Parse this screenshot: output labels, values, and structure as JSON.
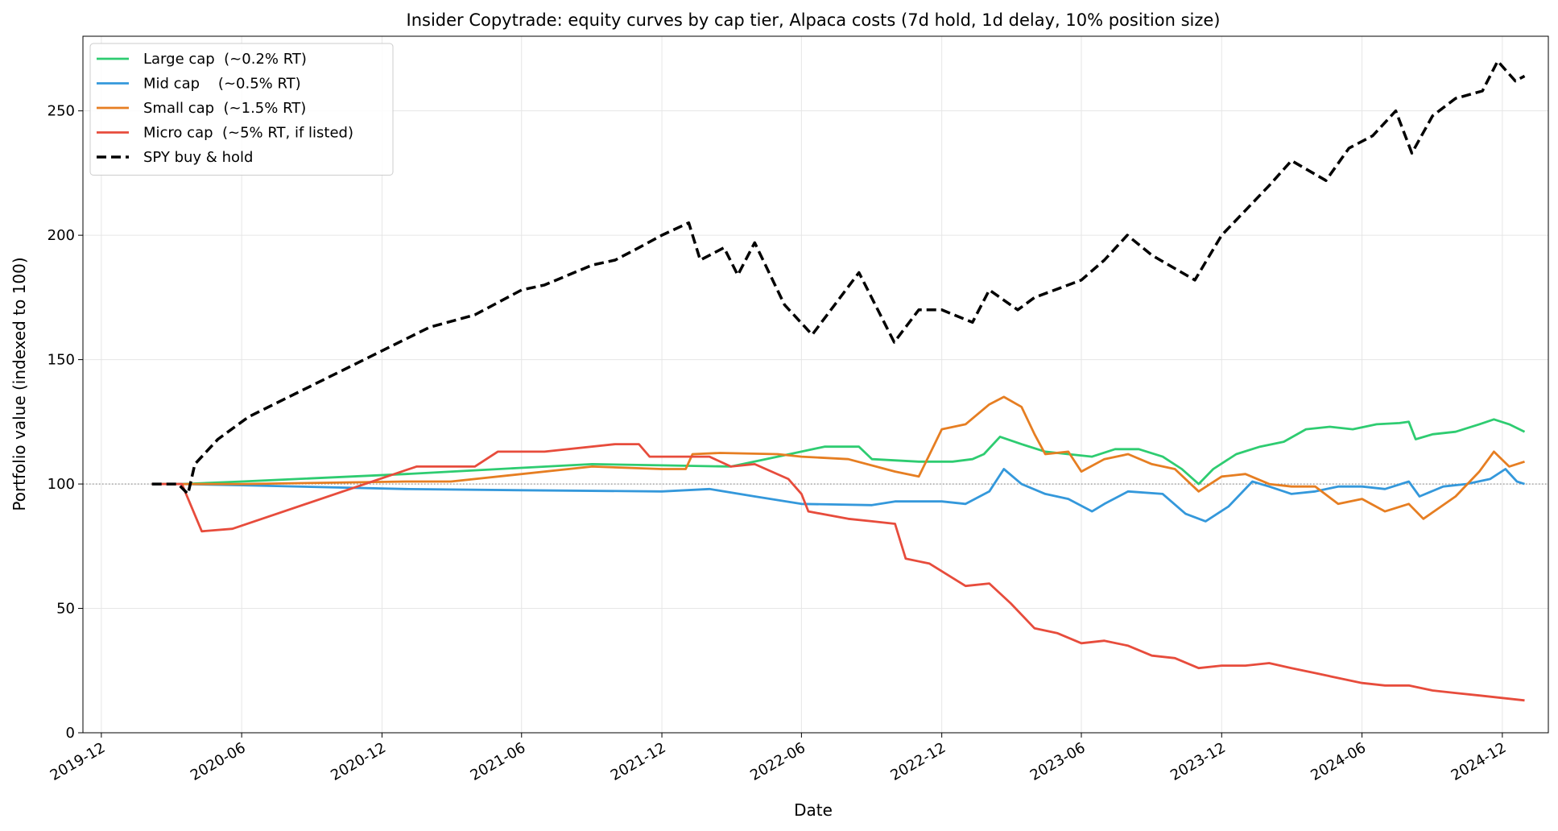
{
  "chart_data": {
    "type": "line",
    "title": "Insider Copytrade: equity curves by cap tier, Alpaca costs  (7d hold, 1d delay, 10% position size)",
    "xlabel": "Date",
    "ylabel": "Portfolio value (indexed to 100)",
    "xlim": [
      "2019-11-07",
      "2025-01-30"
    ],
    "ylim": [
      0,
      280
    ],
    "x_ticks": [
      "2019-12",
      "2020-06",
      "2020-12",
      "2021-06",
      "2021-12",
      "2022-06",
      "2022-12",
      "2023-06",
      "2023-12",
      "2024-06",
      "2024-12"
    ],
    "y_ticks": [
      0,
      50,
      100,
      150,
      200,
      250
    ],
    "grid": true,
    "legend_position": "top-left",
    "reference_line": {
      "y": 100,
      "style": "dotted",
      "color": "#888888"
    },
    "series": [
      {
        "name": "Large cap  (~0.2% RT)",
        "color": "#2ecc71",
        "style": "solid",
        "points": [
          [
            "2020-02-05",
            100
          ],
          [
            "2020-03-15",
            100
          ],
          [
            "2020-06-01",
            101
          ],
          [
            "2021-01-01",
            104
          ],
          [
            "2021-06-01",
            106.5
          ],
          [
            "2021-09-01",
            108
          ],
          [
            "2021-12-01",
            107.5
          ],
          [
            "2022-03-01",
            107
          ],
          [
            "2022-05-01",
            111
          ],
          [
            "2022-07-01",
            115
          ],
          [
            "2022-08-15",
            115
          ],
          [
            "2022-09-01",
            110
          ],
          [
            "2022-11-01",
            109
          ],
          [
            "2022-12-15",
            109
          ],
          [
            "2023-01-10",
            110
          ],
          [
            "2023-01-25",
            112
          ],
          [
            "2023-02-15",
            119
          ],
          [
            "2023-03-15",
            116
          ],
          [
            "2023-04-15",
            113
          ],
          [
            "2023-05-15",
            112
          ],
          [
            "2023-06-15",
            111
          ],
          [
            "2023-07-15",
            114
          ],
          [
            "2023-08-15",
            114
          ],
          [
            "2023-09-15",
            111
          ],
          [
            "2023-10-10",
            106
          ],
          [
            "2023-11-01",
            100
          ],
          [
            "2023-11-20",
            106
          ],
          [
            "2023-12-20",
            112
          ],
          [
            "2024-01-20",
            115
          ],
          [
            "2024-02-20",
            117
          ],
          [
            "2024-03-20",
            122
          ],
          [
            "2024-04-20",
            123
          ],
          [
            "2024-05-20",
            122
          ],
          [
            "2024-06-20",
            124
          ],
          [
            "2024-07-20",
            124.5
          ],
          [
            "2024-08-01",
            125
          ],
          [
            "2024-08-10",
            118
          ],
          [
            "2024-09-01",
            120
          ],
          [
            "2024-10-01",
            121
          ],
          [
            "2024-11-01",
            124
          ],
          [
            "2024-11-20",
            126
          ],
          [
            "2024-12-10",
            124
          ],
          [
            "2024-12-30",
            121
          ]
        ]
      },
      {
        "name": "Mid cap    (~0.5% RT)",
        "color": "#3498db",
        "style": "solid",
        "points": [
          [
            "2020-02-05",
            100
          ],
          [
            "2020-03-15",
            100
          ],
          [
            "2020-06-01",
            99.5
          ],
          [
            "2021-01-01",
            98
          ],
          [
            "2021-06-01",
            97.5
          ],
          [
            "2021-12-01",
            97
          ],
          [
            "2022-02-01",
            98
          ],
          [
            "2022-04-01",
            95
          ],
          [
            "2022-06-01",
            92
          ],
          [
            "2022-09-01",
            91.5
          ],
          [
            "2022-10-01",
            93
          ],
          [
            "2022-12-01",
            93
          ],
          [
            "2023-01-01",
            92
          ],
          [
            "2023-02-01",
            97
          ],
          [
            "2023-02-20",
            106
          ],
          [
            "2023-03-15",
            100
          ],
          [
            "2023-04-15",
            96
          ],
          [
            "2023-05-15",
            94
          ],
          [
            "2023-06-15",
            89
          ],
          [
            "2023-07-01",
            92
          ],
          [
            "2023-08-01",
            97
          ],
          [
            "2023-09-15",
            96
          ],
          [
            "2023-10-15",
            88
          ],
          [
            "2023-11-10",
            85
          ],
          [
            "2023-12-10",
            91
          ],
          [
            "2024-01-10",
            101
          ],
          [
            "2024-02-01",
            99
          ],
          [
            "2024-03-01",
            96
          ],
          [
            "2024-04-01",
            97
          ],
          [
            "2024-05-01",
            99
          ],
          [
            "2024-06-01",
            99
          ],
          [
            "2024-07-01",
            98
          ],
          [
            "2024-08-01",
            101
          ],
          [
            "2024-08-15",
            95
          ],
          [
            "2024-09-15",
            99
          ],
          [
            "2024-10-15",
            100
          ],
          [
            "2024-11-15",
            102
          ],
          [
            "2024-12-05",
            106
          ],
          [
            "2024-12-20",
            101
          ],
          [
            "2024-12-30",
            100
          ]
        ]
      },
      {
        "name": "Small cap  (~1.5% RT)",
        "color": "#e67e22",
        "style": "solid",
        "points": [
          [
            "2020-02-05",
            100
          ],
          [
            "2020-03-15",
            100
          ],
          [
            "2020-06-01",
            100
          ],
          [
            "2021-01-01",
            101
          ],
          [
            "2021-03-01",
            101
          ],
          [
            "2021-09-01",
            107
          ],
          [
            "2021-12-01",
            106
          ],
          [
            "2022-01-01",
            106
          ],
          [
            "2022-01-10",
            112
          ],
          [
            "2022-02-15",
            112.5
          ],
          [
            "2022-05-01",
            112
          ],
          [
            "2022-06-01",
            111
          ],
          [
            "2022-08-01",
            110
          ],
          [
            "2022-10-01",
            105
          ],
          [
            "2022-11-01",
            103
          ],
          [
            "2022-12-01",
            122
          ],
          [
            "2023-01-01",
            124
          ],
          [
            "2023-02-01",
            132
          ],
          [
            "2023-02-20",
            135
          ],
          [
            "2023-03-15",
            131
          ],
          [
            "2023-04-01",
            120
          ],
          [
            "2023-04-15",
            112
          ],
          [
            "2023-05-15",
            113
          ],
          [
            "2023-06-01",
            105
          ],
          [
            "2023-07-01",
            110
          ],
          [
            "2023-08-01",
            112
          ],
          [
            "2023-09-01",
            108
          ],
          [
            "2023-10-01",
            106
          ],
          [
            "2023-11-01",
            97
          ],
          [
            "2023-12-01",
            103
          ],
          [
            "2024-01-01",
            104
          ],
          [
            "2024-02-01",
            100
          ],
          [
            "2024-03-01",
            99
          ],
          [
            "2024-04-01",
            99
          ],
          [
            "2024-05-01",
            92
          ],
          [
            "2024-06-01",
            94
          ],
          [
            "2024-07-01",
            89
          ],
          [
            "2024-08-01",
            92
          ],
          [
            "2024-08-20",
            86
          ],
          [
            "2024-10-01",
            95
          ],
          [
            "2024-11-01",
            105
          ],
          [
            "2024-11-20",
            113
          ],
          [
            "2024-12-10",
            107
          ],
          [
            "2024-12-30",
            109
          ]
        ]
      },
      {
        "name": "Micro cap  (~5% RT, if listed)",
        "color": "#e74c3c",
        "style": "solid",
        "points": [
          [
            "2020-02-05",
            100
          ],
          [
            "2020-03-15",
            100
          ],
          [
            "2020-04-10",
            81
          ],
          [
            "2020-05-20",
            82
          ],
          [
            "2021-01-15",
            107
          ],
          [
            "2021-04-01",
            107
          ],
          [
            "2021-05-01",
            113
          ],
          [
            "2021-07-01",
            113
          ],
          [
            "2021-10-01",
            116
          ],
          [
            "2021-11-01",
            116
          ],
          [
            "2021-11-15",
            111
          ],
          [
            "2022-02-01",
            111
          ],
          [
            "2022-03-01",
            107
          ],
          [
            "2022-04-01",
            108
          ],
          [
            "2022-05-15",
            102
          ],
          [
            "2022-06-01",
            96
          ],
          [
            "2022-06-10",
            89
          ],
          [
            "2022-08-01",
            86
          ],
          [
            "2022-09-01",
            85
          ],
          [
            "2022-10-01",
            84
          ],
          [
            "2022-10-15",
            70
          ],
          [
            "2022-11-15",
            68
          ],
          [
            "2023-01-01",
            59
          ],
          [
            "2023-02-01",
            60
          ],
          [
            "2023-03-01",
            52
          ],
          [
            "2023-04-01",
            42
          ],
          [
            "2023-05-01",
            40
          ],
          [
            "2023-06-01",
            36
          ],
          [
            "2023-07-01",
            37
          ],
          [
            "2023-08-01",
            35
          ],
          [
            "2023-09-01",
            31
          ],
          [
            "2023-10-01",
            30
          ],
          [
            "2023-11-01",
            26
          ],
          [
            "2023-12-01",
            27
          ],
          [
            "2024-01-01",
            27
          ],
          [
            "2024-02-01",
            28
          ],
          [
            "2024-03-01",
            26
          ],
          [
            "2024-04-01",
            24
          ],
          [
            "2024-05-01",
            22
          ],
          [
            "2024-06-01",
            20
          ],
          [
            "2024-07-01",
            19
          ],
          [
            "2024-08-01",
            19
          ],
          [
            "2024-09-01",
            17
          ],
          [
            "2024-10-01",
            16
          ],
          [
            "2024-11-01",
            15
          ],
          [
            "2024-12-01",
            14
          ],
          [
            "2024-12-30",
            13
          ]
        ]
      },
      {
        "name": "SPY buy & hold",
        "color": "#000000",
        "style": "dashed",
        "points": [
          [
            "2020-02-05",
            100
          ],
          [
            "2020-03-10",
            100
          ],
          [
            "2020-03-23",
            96
          ],
          [
            "2020-04-01",
            108
          ],
          [
            "2020-05-01",
            118
          ],
          [
            "2020-06-10",
            127
          ],
          [
            "2021-02-01",
            163
          ],
          [
            "2021-04-01",
            168
          ],
          [
            "2021-06-01",
            178
          ],
          [
            "2021-07-01",
            180
          ],
          [
            "2021-09-01",
            188
          ],
          [
            "2021-10-01",
            190
          ],
          [
            "2021-11-01",
            195
          ],
          [
            "2021-12-01",
            200
          ],
          [
            "2022-01-05",
            205
          ],
          [
            "2022-01-20",
            190
          ],
          [
            "2022-02-20",
            195
          ],
          [
            "2022-03-10",
            184
          ],
          [
            "2022-04-01",
            197
          ],
          [
            "2022-05-10",
            172
          ],
          [
            "2022-06-15",
            160
          ],
          [
            "2022-08-15",
            185
          ],
          [
            "2022-09-30",
            157
          ],
          [
            "2022-11-01",
            170
          ],
          [
            "2022-12-01",
            170
          ],
          [
            "2023-01-10",
            165
          ],
          [
            "2023-02-01",
            178
          ],
          [
            "2023-03-10",
            170
          ],
          [
            "2023-04-01",
            175
          ],
          [
            "2023-05-15",
            180
          ],
          [
            "2023-06-01",
            182
          ],
          [
            "2023-07-01",
            190
          ],
          [
            "2023-07-31",
            200
          ],
          [
            "2023-09-01",
            192
          ],
          [
            "2023-10-27",
            182
          ],
          [
            "2023-12-01",
            200
          ],
          [
            "2024-01-01",
            210
          ],
          [
            "2024-02-01",
            220
          ],
          [
            "2024-03-01",
            230
          ],
          [
            "2024-04-15",
            222
          ],
          [
            "2024-05-15",
            235
          ],
          [
            "2024-06-15",
            240
          ],
          [
            "2024-07-15",
            250
          ],
          [
            "2024-08-05",
            233
          ],
          [
            "2024-09-01",
            248
          ],
          [
            "2024-10-01",
            255
          ],
          [
            "2024-11-05",
            258
          ],
          [
            "2024-11-25",
            270
          ],
          [
            "2024-12-18",
            262
          ],
          [
            "2024-12-30",
            264
          ]
        ]
      }
    ]
  }
}
